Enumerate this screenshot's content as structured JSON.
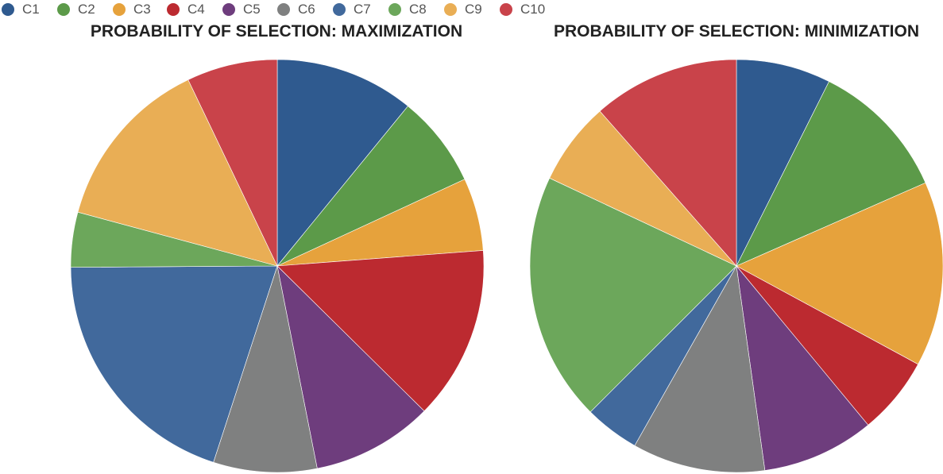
{
  "legend": [
    {
      "label": "C1",
      "color": "#2f5a8f"
    },
    {
      "label": "C2",
      "color": "#5c9a49"
    },
    {
      "label": "C3",
      "color": "#e6a23c"
    },
    {
      "label": "C4",
      "color": "#bc2a30"
    },
    {
      "label": "C5",
      "color": "#6e3d7d"
    },
    {
      "label": "C6",
      "color": "#7f8080"
    },
    {
      "label": "C7",
      "color": "#41699c"
    },
    {
      "label": "C8",
      "color": "#6ca75b"
    },
    {
      "label": "C9",
      "color": "#e9ae55"
    },
    {
      "label": "C10",
      "color": "#c9434a"
    }
  ],
  "chart_data": [
    {
      "type": "pie",
      "title": "PROBABILITY OF SELECTION: MAXIMIZATION",
      "categories": [
        "C1",
        "C2",
        "C3",
        "C4",
        "C5",
        "C6",
        "C7",
        "C8",
        "C9",
        "C10"
      ],
      "values": [
        0.109,
        0.072,
        0.057,
        0.136,
        0.095,
        0.081,
        0.199,
        0.043,
        0.137,
        0.071
      ],
      "start_angle": "12 o'clock",
      "direction": "clockwise"
    },
    {
      "type": "pie",
      "title": "PROBABILITY OF SELECTION: MINIMIZATION",
      "categories": [
        "C1",
        "C2",
        "C3",
        "C4",
        "C5",
        "C6",
        "C7",
        "C8",
        "C9",
        "C10"
      ],
      "values": [
        0.074,
        0.11,
        0.145,
        0.061,
        0.088,
        0.104,
        0.043,
        0.195,
        0.065,
        0.115
      ],
      "start_angle": "12 o'clock",
      "direction": "clockwise"
    }
  ]
}
